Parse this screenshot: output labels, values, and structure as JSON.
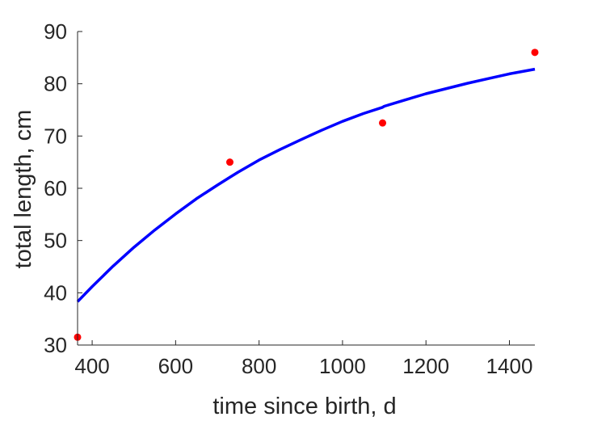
{
  "chart_data": {
    "type": "line",
    "title": "",
    "xlabel": "time since birth, d",
    "ylabel": "total length, cm",
    "xlim": [
      365,
      1461
    ],
    "ylim": [
      30,
      90
    ],
    "xticks": [
      400,
      600,
      800,
      1000,
      1200,
      1400
    ],
    "yticks": [
      30,
      40,
      50,
      60,
      70,
      80,
      90
    ],
    "grid": false,
    "series": [
      {
        "type": "line",
        "color": "#0000ff",
        "x": [
          365,
          400,
          450,
          500,
          550,
          600,
          650,
          700,
          730,
          750,
          800,
          850,
          900,
          950,
          1000,
          1050,
          1096,
          1100,
          1150,
          1200,
          1250,
          1300,
          1350,
          1400,
          1461
        ],
        "y": [
          38.3,
          41.2,
          45.1,
          48.7,
          52.0,
          55.1,
          58.0,
          60.6,
          62.1,
          63.1,
          65.4,
          67.4,
          69.3,
          71.1,
          72.8,
          74.3,
          75.5,
          75.7,
          76.9,
          78.1,
          79.1,
          80.1,
          81.0,
          81.9,
          82.8
        ]
      },
      {
        "type": "scatter",
        "color": "#ff0000",
        "x": [
          365,
          730,
          1096,
          1461
        ],
        "y": [
          31.5,
          65,
          72.5,
          86
        ]
      }
    ]
  }
}
